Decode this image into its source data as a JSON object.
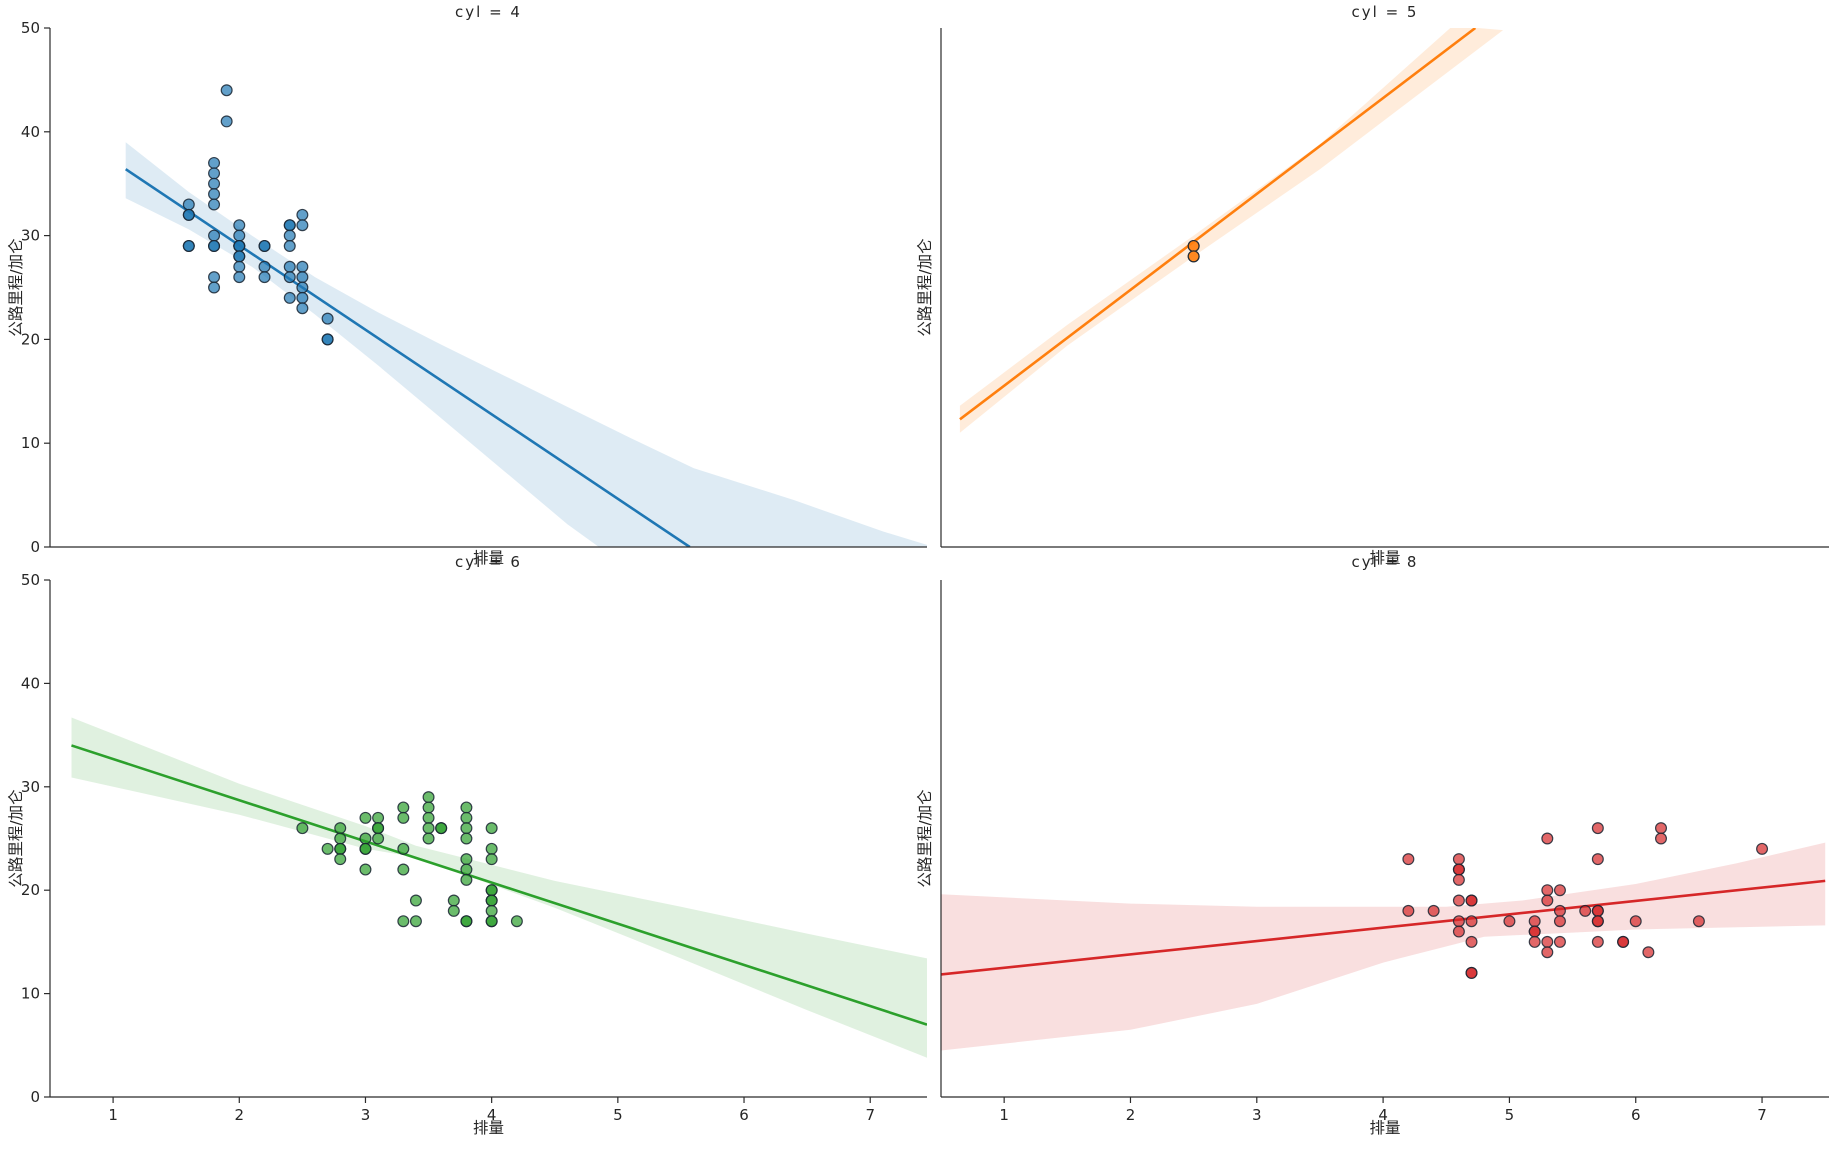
{
  "chart_data": {
    "type": "scatter",
    "faceted_by": "cyl",
    "xlabel": "排量",
    "ylabel": "公路里程/加仑",
    "xlim": [
      0.5,
      7.5
    ],
    "ylim": [
      0,
      50
    ],
    "xticks": [
      1,
      2,
      3,
      4,
      5,
      6,
      7
    ],
    "yticks": [
      0,
      10,
      20,
      30,
      40,
      50
    ],
    "grid": false,
    "legend": false,
    "facets": [
      {
        "title": "cyl = 4",
        "cyl": 4,
        "color": "#1f77b4",
        "band_fill": "rgba(31,119,180,0.15)",
        "regression_line": {
          "x": [
            1.1,
            5.57
          ],
          "y": [
            36.4,
            0.0
          ]
        },
        "ci_band": {
          "upper": [
            [
              1.1,
              39.0
            ],
            [
              1.6,
              34.2
            ],
            [
              2.1,
              30.0
            ],
            [
              2.6,
              26.0
            ],
            [
              3.1,
              22.6
            ],
            [
              3.6,
              19.5
            ],
            [
              4.1,
              16.5
            ],
            [
              4.6,
              13.5
            ],
            [
              5.1,
              10.5
            ],
            [
              5.6,
              7.6
            ],
            [
              6.4,
              4.5
            ],
            [
              7.1,
              1.5
            ],
            [
              7.45,
              0.2
            ]
          ],
          "lower": [
            [
              1.1,
              33.6
            ],
            [
              1.6,
              30.6
            ],
            [
              2.1,
              27.0
            ],
            [
              2.6,
              22.4
            ],
            [
              3.1,
              17.5
            ],
            [
              3.6,
              12.4
            ],
            [
              4.1,
              7.3
            ],
            [
              4.6,
              2.2
            ],
            [
              4.85,
              0.0
            ],
            [
              7.45,
              0.0
            ]
          ]
        },
        "points": [
          [
            1.6,
            33
          ],
          [
            1.6,
            32
          ],
          [
            1.6,
            32
          ],
          [
            1.6,
            29
          ],
          [
            1.6,
            29
          ],
          [
            1.8,
            37
          ],
          [
            1.8,
            36
          ],
          [
            1.8,
            35
          ],
          [
            1.8,
            34
          ],
          [
            1.8,
            33
          ],
          [
            1.8,
            30
          ],
          [
            1.8,
            29
          ],
          [
            1.8,
            29
          ],
          [
            1.8,
            26
          ],
          [
            1.8,
            25
          ],
          [
            1.9,
            44
          ],
          [
            1.9,
            41
          ],
          [
            2.0,
            31
          ],
          [
            2.0,
            30
          ],
          [
            2.0,
            29
          ],
          [
            2.0,
            29
          ],
          [
            2.0,
            29
          ],
          [
            2.0,
            28
          ],
          [
            2.0,
            28
          ],
          [
            2.0,
            27
          ],
          [
            2.0,
            26
          ],
          [
            2.2,
            29
          ],
          [
            2.2,
            29
          ],
          [
            2.2,
            27
          ],
          [
            2.2,
            26
          ],
          [
            2.4,
            31
          ],
          [
            2.4,
            31
          ],
          [
            2.4,
            30
          ],
          [
            2.4,
            29
          ],
          [
            2.4,
            27
          ],
          [
            2.4,
            26
          ],
          [
            2.4,
            24
          ],
          [
            2.5,
            32
          ],
          [
            2.5,
            31
          ],
          [
            2.5,
            27
          ],
          [
            2.5,
            26
          ],
          [
            2.5,
            25
          ],
          [
            2.5,
            24
          ],
          [
            2.5,
            23
          ],
          [
            2.7,
            22
          ],
          [
            2.7,
            20
          ],
          [
            2.7,
            20
          ]
        ]
      },
      {
        "title": "cyl = 5",
        "cyl": 5,
        "color": "#ff7f0e",
        "band_fill": "rgba(255,127,14,0.15)",
        "regression_line": {
          "x": [
            0.65,
            4.73
          ],
          "y": [
            12.3,
            50.0
          ]
        },
        "ci_band": {
          "upper": [
            [
              0.65,
              13.6
            ],
            [
              1.5,
              21.4
            ],
            [
              2.5,
              30.0
            ],
            [
              3.5,
              38.8
            ],
            [
              4.55,
              50.2
            ]
          ],
          "lower": [
            [
              0.65,
              11.0
            ],
            [
              1.5,
              19.4
            ],
            [
              2.5,
              28.0
            ],
            [
              3.5,
              36.4
            ],
            [
              4.95,
              49.8
            ]
          ]
        },
        "points": [
          [
            2.5,
            29
          ],
          [
            2.5,
            29
          ],
          [
            2.5,
            28
          ],
          [
            2.5,
            28
          ]
        ]
      },
      {
        "title": "cyl = 6",
        "cyl": 6,
        "color": "#2ca02c",
        "band_fill": "rgba(44,160,44,0.15)",
        "regression_line": {
          "x": [
            0.67,
            7.45
          ],
          "y": [
            34.0,
            7.0
          ]
        },
        "ci_band": {
          "upper": [
            [
              0.67,
              36.7
            ],
            [
              2.0,
              30.3
            ],
            [
              3.0,
              26.2
            ],
            [
              3.4,
              24.3
            ],
            [
              4.5,
              20.9
            ],
            [
              5.5,
              18.4
            ],
            [
              6.5,
              15.8
            ],
            [
              7.45,
              13.4
            ]
          ],
          "lower": [
            [
              0.67,
              30.9
            ],
            [
              2.0,
              27.3
            ],
            [
              3.0,
              24.0
            ],
            [
              3.4,
              23.2
            ],
            [
              4.5,
              18.3
            ],
            [
              5.5,
              13.4
            ],
            [
              6.5,
              8.4
            ],
            [
              7.45,
              3.8
            ]
          ]
        },
        "points": [
          [
            2.5,
            26
          ],
          [
            2.7,
            24
          ],
          [
            2.8,
            26
          ],
          [
            2.8,
            25
          ],
          [
            2.8,
            24
          ],
          [
            2.8,
            24
          ],
          [
            2.8,
            23
          ],
          [
            3.0,
            27
          ],
          [
            3.0,
            25
          ],
          [
            3.0,
            24
          ],
          [
            3.0,
            24
          ],
          [
            3.0,
            22
          ],
          [
            3.1,
            27
          ],
          [
            3.1,
            26
          ],
          [
            3.1,
            26
          ],
          [
            3.1,
            25
          ],
          [
            3.3,
            28
          ],
          [
            3.3,
            27
          ],
          [
            3.3,
            24
          ],
          [
            3.3,
            22
          ],
          [
            3.3,
            17
          ],
          [
            3.4,
            19
          ],
          [
            3.4,
            17
          ],
          [
            3.5,
            29
          ],
          [
            3.5,
            28
          ],
          [
            3.5,
            27
          ],
          [
            3.5,
            26
          ],
          [
            3.5,
            25
          ],
          [
            3.6,
            26
          ],
          [
            3.6,
            26
          ],
          [
            3.7,
            19
          ],
          [
            3.7,
            18
          ],
          [
            3.8,
            28
          ],
          [
            3.8,
            27
          ],
          [
            3.8,
            26
          ],
          [
            3.8,
            25
          ],
          [
            3.8,
            23
          ],
          [
            3.8,
            22
          ],
          [
            3.8,
            21
          ],
          [
            3.8,
            17
          ],
          [
            3.8,
            17
          ],
          [
            4.0,
            26
          ],
          [
            4.0,
            24
          ],
          [
            4.0,
            23
          ],
          [
            4.0,
            20
          ],
          [
            4.0,
            20
          ],
          [
            4.0,
            19
          ],
          [
            4.0,
            19
          ],
          [
            4.0,
            18
          ],
          [
            4.0,
            17
          ],
          [
            4.0,
            17
          ],
          [
            4.2,
            17
          ]
        ]
      },
      {
        "title": "cyl = 8",
        "cyl": 8,
        "color": "#d62728",
        "band_fill": "rgba(214,39,40,0.15)",
        "regression_line": {
          "x": [
            0.5,
            7.5
          ],
          "y": [
            11.85,
            20.9
          ]
        },
        "ci_band": {
          "upper": [
            [
              0.5,
              19.6
            ],
            [
              2.0,
              18.7
            ],
            [
              3.0,
              18.4
            ],
            [
              4.5,
              18.4
            ],
            [
              5.1,
              19.0
            ],
            [
              6.0,
              20.6
            ],
            [
              6.8,
              22.6
            ],
            [
              7.5,
              24.6
            ]
          ],
          "lower": [
            [
              0.5,
              4.5
            ],
            [
              2.0,
              6.5
            ],
            [
              3.0,
              9.0
            ],
            [
              4.0,
              13.0
            ],
            [
              4.8,
              15.5
            ],
            [
              5.5,
              15.9
            ],
            [
              6.0,
              16.2
            ],
            [
              7.5,
              16.6
            ]
          ]
        },
        "points": [
          [
            4.2,
            23
          ],
          [
            4.2,
            18
          ],
          [
            4.4,
            18
          ],
          [
            4.6,
            23
          ],
          [
            4.6,
            22
          ],
          [
            4.6,
            22
          ],
          [
            4.6,
            21
          ],
          [
            4.6,
            19
          ],
          [
            4.6,
            17
          ],
          [
            4.6,
            16
          ],
          [
            4.7,
            19
          ],
          [
            4.7,
            19
          ],
          [
            4.7,
            17
          ],
          [
            4.7,
            15
          ],
          [
            4.7,
            12
          ],
          [
            4.7,
            12
          ],
          [
            5.0,
            17
          ],
          [
            5.2,
            17
          ],
          [
            5.2,
            16
          ],
          [
            5.2,
            16
          ],
          [
            5.2,
            15
          ],
          [
            5.3,
            25
          ],
          [
            5.3,
            20
          ],
          [
            5.3,
            19
          ],
          [
            5.3,
            15
          ],
          [
            5.3,
            14
          ],
          [
            5.4,
            20
          ],
          [
            5.4,
            18
          ],
          [
            5.4,
            17
          ],
          [
            5.4,
            15
          ],
          [
            5.6,
            18
          ],
          [
            5.7,
            26
          ],
          [
            5.7,
            23
          ],
          [
            5.7,
            18
          ],
          [
            5.7,
            18
          ],
          [
            5.7,
            17
          ],
          [
            5.7,
            17
          ],
          [
            5.7,
            15
          ],
          [
            5.9,
            15
          ],
          [
            5.9,
            15
          ],
          [
            6.0,
            17
          ],
          [
            6.1,
            14
          ],
          [
            6.2,
            26
          ],
          [
            6.2,
            25
          ],
          [
            6.5,
            17
          ],
          [
            7.0,
            24
          ]
        ]
      }
    ]
  }
}
